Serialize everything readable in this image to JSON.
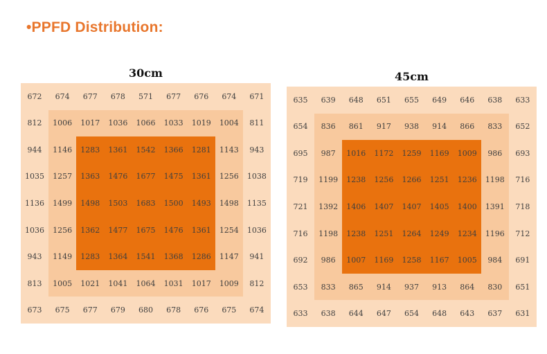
{
  "page_title": "•PPFD Distribution:",
  "colors": {
    "heading": "#e8762c",
    "zone_outer": "#fbdbbd",
    "zone_middle": "#f8c99e",
    "zone_inner": "#e9720e",
    "number_text": "#3f3f3f",
    "label_text": "#111111",
    "background": "#ffffff"
  },
  "chart_data": [
    {
      "type": "heatmap",
      "title": "30cm",
      "rows": 9,
      "cols": 9,
      "zones": {
        "outer_ring": "rows/cols 1 and 9",
        "middle_ring": "rows/cols 2-8",
        "inner_core": "rows/cols 3-7"
      },
      "values": [
        [
          672,
          674,
          677,
          678,
          571,
          677,
          676,
          674,
          671
        ],
        [
          812,
          1006,
          1017,
          1036,
          1066,
          1033,
          1019,
          1004,
          811
        ],
        [
          944,
          1146,
          1283,
          1361,
          1542,
          1366,
          1281,
          1143,
          943
        ],
        [
          1035,
          1257,
          1363,
          1476,
          1677,
          1475,
          1361,
          1256,
          1038
        ],
        [
          1136,
          1499,
          1498,
          1503,
          1683,
          1500,
          1493,
          1498,
          1135
        ],
        [
          1036,
          1256,
          1362,
          1477,
          1675,
          1476,
          1361,
          1254,
          1036
        ],
        [
          943,
          1149,
          1283,
          1364,
          1541,
          1368,
          1286,
          1147,
          941
        ],
        [
          813,
          1005,
          1021,
          1041,
          1064,
          1031,
          1017,
          1009,
          812
        ],
        [
          673,
          675,
          677,
          679,
          680,
          678,
          676,
          675,
          674
        ]
      ]
    },
    {
      "type": "heatmap",
      "title": "45cm",
      "rows": 9,
      "cols": 9,
      "zones": {
        "outer_ring": "rows/cols 1 and 9",
        "middle_ring": "rows/cols 2-8",
        "inner_core": "rows/cols 3-7"
      },
      "values": [
        [
          635,
          639,
          648,
          651,
          655,
          649,
          646,
          638,
          633
        ],
        [
          654,
          836,
          861,
          917,
          938,
          914,
          866,
          833,
          652
        ],
        [
          695,
          987,
          1016,
          1172,
          1259,
          1169,
          1009,
          986,
          693
        ],
        [
          719,
          1199,
          1238,
          1256,
          1266,
          1251,
          1236,
          1198,
          716
        ],
        [
          721,
          1392,
          1406,
          1407,
          1407,
          1405,
          1400,
          1391,
          718
        ],
        [
          716,
          1198,
          1238,
          1251,
          1264,
          1249,
          1234,
          1196,
          712
        ],
        [
          692,
          986,
          1007,
          1169,
          1258,
          1167,
          1005,
          984,
          691
        ],
        [
          653,
          833,
          865,
          914,
          937,
          913,
          864,
          830,
          651
        ],
        [
          633,
          638,
          644,
          647,
          654,
          648,
          643,
          637,
          631
        ]
      ]
    }
  ]
}
